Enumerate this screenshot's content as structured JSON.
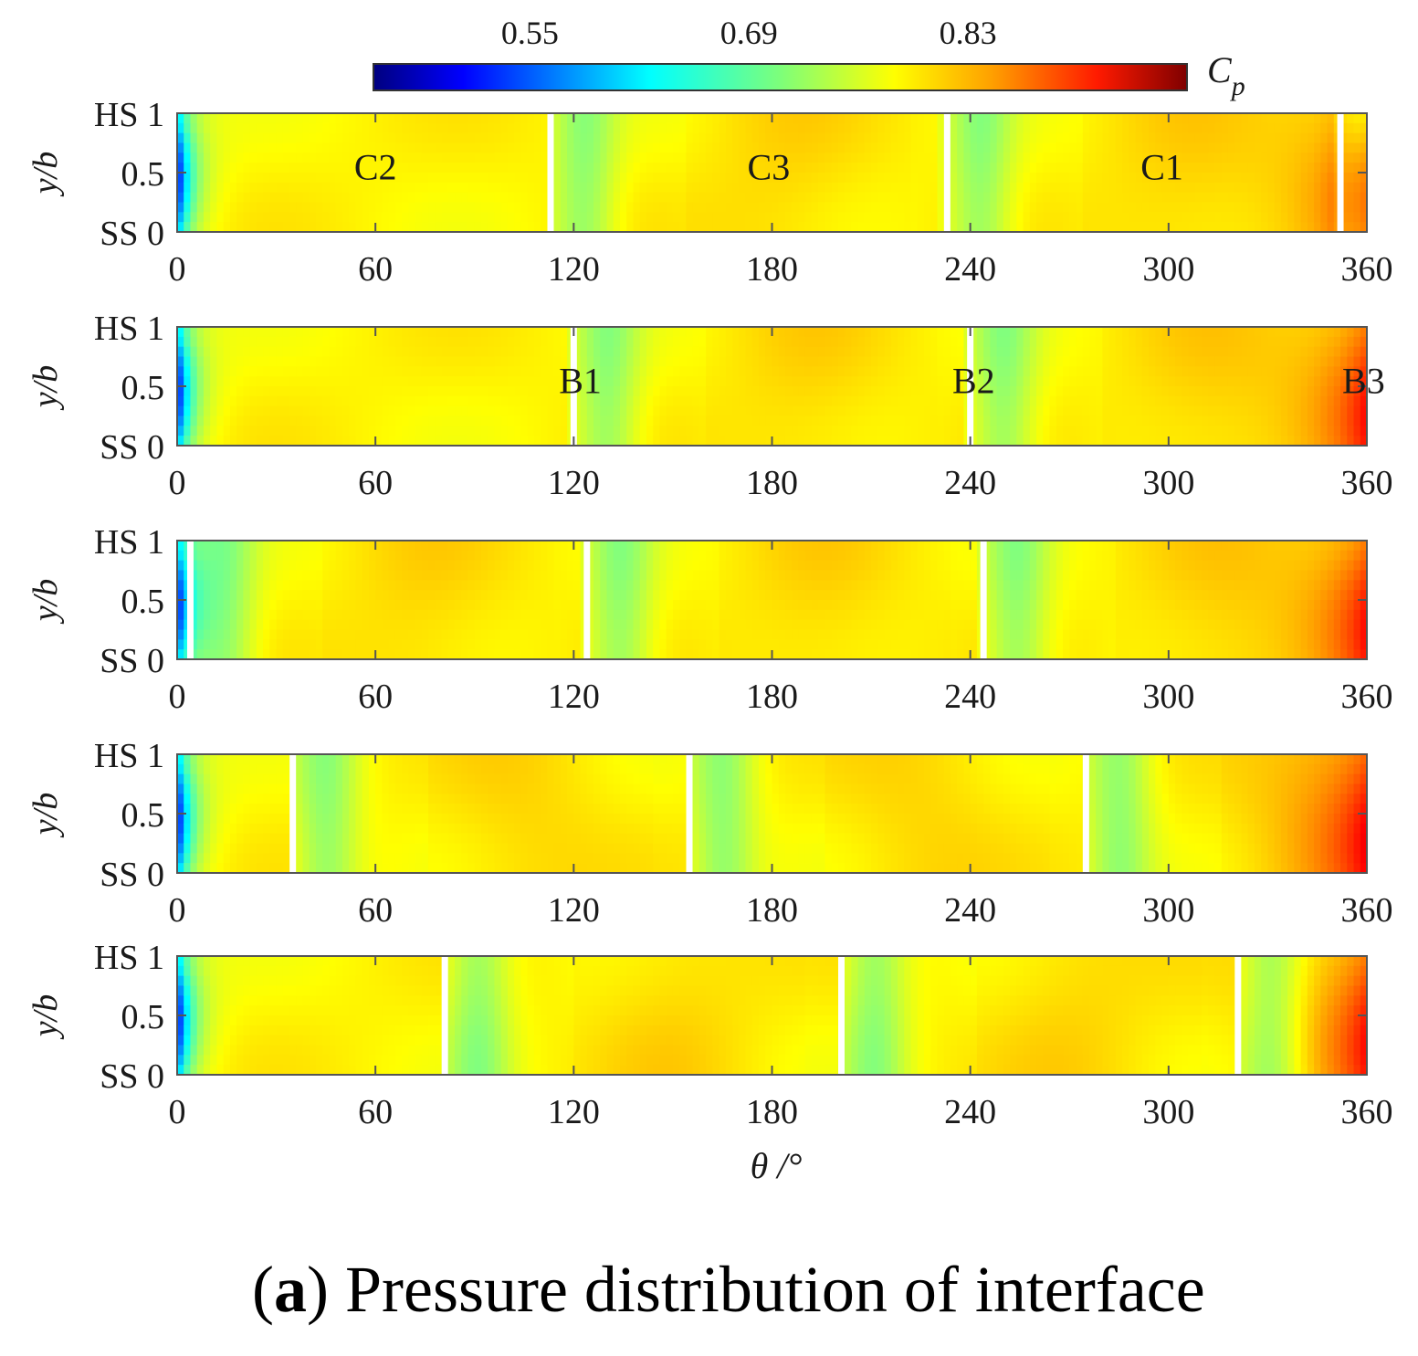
{
  "chart_data": {
    "type": "heatmap",
    "colorbar": {
      "label_main": "C",
      "label_sub": "p",
      "ticks": [
        0.55,
        0.69,
        0.83
      ],
      "tick_labels": [
        "0.55",
        "0.69",
        "0.83"
      ],
      "range": [
        0.45,
        0.97
      ],
      "colormap": "jet"
    },
    "x_axis": {
      "label": "θ /°",
      "range": [
        0,
        360
      ],
      "ticks": [
        0,
        60,
        120,
        180,
        240,
        300,
        360
      ],
      "tick_labels": [
        "0",
        "60",
        "120",
        "180",
        "240",
        "300",
        "360"
      ]
    },
    "y_axis": {
      "label": "y/b",
      "range": [
        0,
        1
      ],
      "ticks": [
        1,
        0.5,
        0
      ],
      "tick_labels": [
        "HS 1",
        "0.5",
        "SS 0"
      ]
    },
    "panels": [
      {
        "blade_lines": [
          113,
          233,
          352
        ],
        "annotations": [
          {
            "text": "C2",
            "theta": 60,
            "y": 0.55
          },
          {
            "text": "C3",
            "theta": 179,
            "y": 0.55
          },
          {
            "text": "C1",
            "theta": 298,
            "y": 0.55
          }
        ]
      },
      {
        "blade_lines": [
          120,
          240
        ],
        "annotations": [
          {
            "text": "B1",
            "theta": 122,
            "y": 0.55
          },
          {
            "text": "B2",
            "theta": 241,
            "y": 0.55
          },
          {
            "text": "B3",
            "theta": 359,
            "y": 0.55
          }
        ]
      },
      {
        "blade_lines": [
          4,
          124,
          244
        ],
        "annotations": []
      },
      {
        "blade_lines": [
          35,
          155,
          275
        ],
        "annotations": []
      },
      {
        "blade_lines": [
          81,
          201,
          321
        ],
        "annotations": []
      }
    ],
    "values_description_levels": {
      "leading_edge_min": 0.5,
      "background": 0.78,
      "wake_band": 0.72,
      "trailing_max": 0.9
    }
  },
  "caption": {
    "label": "a",
    "text": "Pressure distribution of interface"
  }
}
